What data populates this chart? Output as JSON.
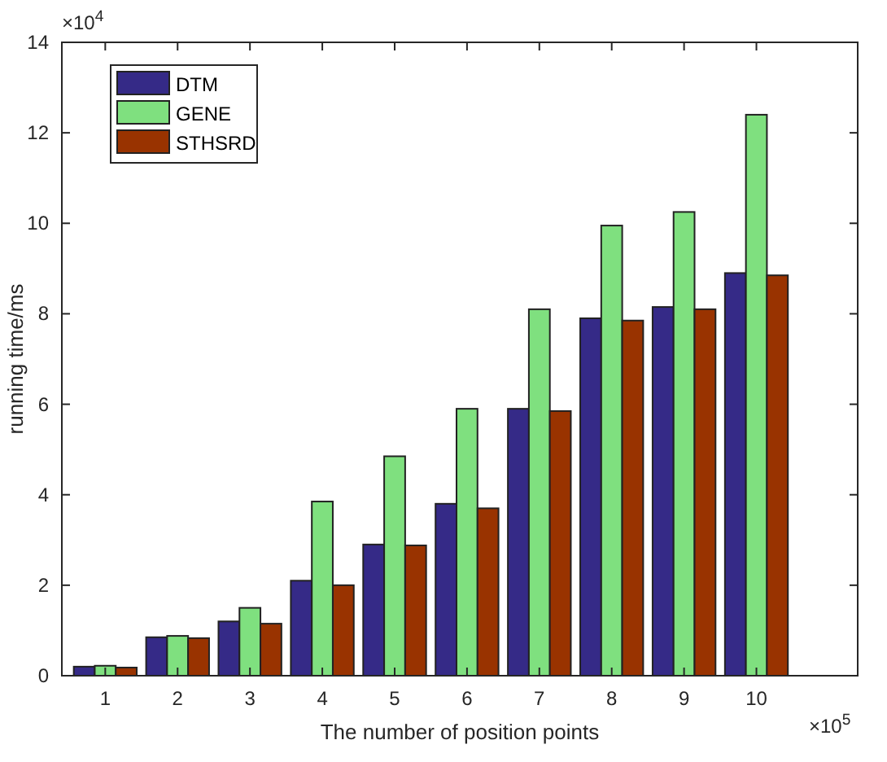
{
  "chart_data": {
    "type": "bar",
    "xlabel": "The number of position points",
    "ylabel": "running time/ms",
    "x": [
      1,
      2,
      3,
      4,
      5,
      6,
      7,
      8,
      9,
      10
    ],
    "xlim": [
      0.4,
      11.4
    ],
    "xticks": [
      1,
      2,
      3,
      4,
      5,
      6,
      7,
      8,
      9,
      10
    ],
    "ylim": [
      0,
      14
    ],
    "yticks": [
      0,
      2,
      4,
      6,
      8,
      10,
      12,
      14
    ],
    "series": [
      {
        "name": "DTM",
        "color": "#352a87",
        "values": [
          0.2,
          0.85,
          1.2,
          2.1,
          2.9,
          3.8,
          5.9,
          7.9,
          8.15,
          8.9
        ]
      },
      {
        "name": "GENE",
        "color": "#7fe07f",
        "values": [
          0.22,
          0.88,
          1.5,
          3.85,
          4.85,
          5.9,
          8.1,
          9.95,
          10.25,
          12.4
        ]
      },
      {
        "name": "STHSRD",
        "color": "#993300",
        "values": [
          0.18,
          0.83,
          1.15,
          2.0,
          2.88,
          3.7,
          5.85,
          7.85,
          8.1,
          8.85
        ]
      }
    ],
    "annotations": [
      "×10$^{4}$",
      "×10$^{5}$"
    ],
    "legend": "top left",
    "grid": false
  }
}
